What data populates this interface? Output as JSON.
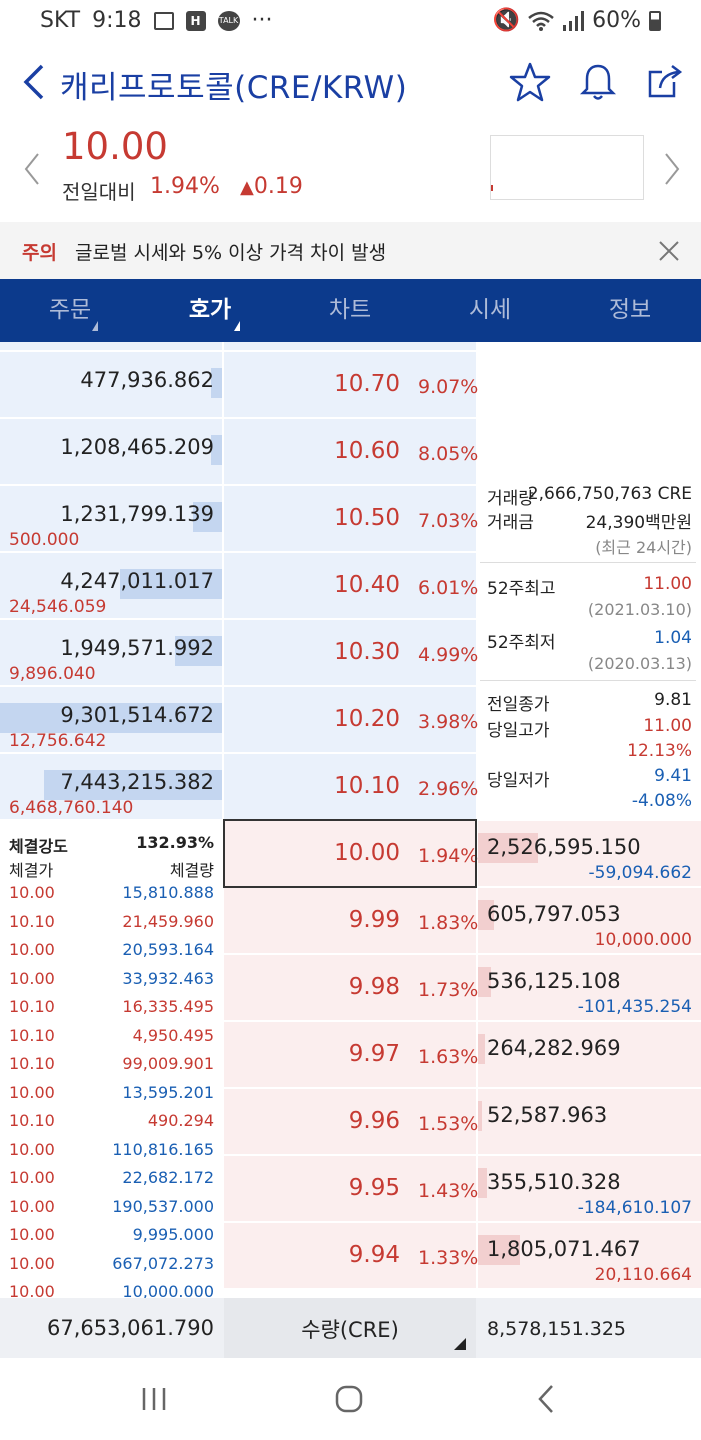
{
  "status": {
    "carrier": "SKT",
    "time": "9:18",
    "icon_h": "H",
    "icon_talk": "TALK",
    "more": "···",
    "battery": "60%"
  },
  "header": {
    "title": "캐리프로토콜(CRE/KRW)"
  },
  "price": {
    "current": "10.00",
    "compare_label": "전일대비",
    "pct": "1.94%",
    "change": "0.19"
  },
  "notice": {
    "label": "주의",
    "text": "글로벌 시세와 5% 이상 가격 차이 발생"
  },
  "tabs": [
    {
      "label": "주문"
    },
    {
      "label": "호가"
    },
    {
      "label": "차트"
    },
    {
      "label": "시세"
    },
    {
      "label": "정보"
    }
  ],
  "asks": [
    {
      "vol": "477,936.862",
      "price": "10.70",
      "pct": "9.07%",
      "sub": "",
      "fill": 0.05
    },
    {
      "vol": "1,208,465.209",
      "price": "10.60",
      "pct": "8.05%",
      "sub": "",
      "fill": 0.05
    },
    {
      "vol": "1,231,799.139",
      "price": "10.50",
      "pct": "7.03%",
      "sub": "500.000",
      "fill": 0.13
    },
    {
      "vol": "4,247,011.017",
      "price": "10.40",
      "pct": "6.01%",
      "sub": "24,546.059",
      "fill": 0.46
    },
    {
      "vol": "1,949,571.992",
      "price": "10.30",
      "pct": "4.99%",
      "sub": "9,896.040",
      "fill": 0.21
    },
    {
      "vol": "9,301,514.672",
      "price": "10.20",
      "pct": "3.98%",
      "sub": "12,756.642",
      "fill": 1.0
    },
    {
      "vol": "7,443,215.382",
      "price": "10.10",
      "pct": "2.96%",
      "sub": "6,468,760.140",
      "fill": 0.8
    }
  ],
  "bids": [
    {
      "vol": "2,526,595.150",
      "price": "10.00",
      "pct": "1.94%",
      "sub": "-59,094.662",
      "fill": 0.27
    },
    {
      "vol": "605,797.053",
      "price": "9.99",
      "pct": "1.83%",
      "sub": "10,000.000",
      "fill": 0.07
    },
    {
      "vol": "536,125.108",
      "price": "9.98",
      "pct": "1.73%",
      "sub": "-101,435.254",
      "fill": 0.06
    },
    {
      "vol": "264,282.969",
      "price": "9.97",
      "pct": "1.63%",
      "sub": "",
      "fill": 0.03
    },
    {
      "vol": "52,587.963",
      "price": "9.96",
      "pct": "1.53%",
      "sub": "",
      "fill": 0.01
    },
    {
      "vol": "355,510.328",
      "price": "9.95",
      "pct": "1.43%",
      "sub": "-184,610.107",
      "fill": 0.04
    },
    {
      "vol": "1,805,071.467",
      "price": "9.94",
      "pct": "1.33%",
      "sub": "20,110.664",
      "fill": 0.19
    }
  ],
  "info": {
    "volume_label": "거래량",
    "volume": "2,666,750,763 CRE",
    "amount_label": "거래금",
    "amount": "24,390백만원",
    "recent": "(최근 24시간)",
    "high52_label": "52주최고",
    "high52": "11.00",
    "high52_date": "(2021.03.10)",
    "low52_label": "52주최저",
    "low52": "1.04",
    "low52_date": "(2020.03.13)",
    "prev_close_label": "전일종가",
    "prev_close": "9.81",
    "day_high_label": "당일고가",
    "day_high": "11.00",
    "day_high_pct": "12.13%",
    "day_low_label": "당일저가",
    "day_low": "9.41",
    "day_low_pct": "-4.08%"
  },
  "trades": {
    "strength_label": "체결강도",
    "strength": "132.93%",
    "price_col": "체결가",
    "vol_col": "체결량",
    "rows": [
      {
        "p": "10.00",
        "v": "15,810.888",
        "c": "blue"
      },
      {
        "p": "10.10",
        "v": "21,459.960",
        "c": "red"
      },
      {
        "p": "10.00",
        "v": "20,593.164",
        "c": "blue"
      },
      {
        "p": "10.00",
        "v": "33,932.463",
        "c": "blue"
      },
      {
        "p": "10.10",
        "v": "16,335.495",
        "c": "red"
      },
      {
        "p": "10.10",
        "v": "4,950.495",
        "c": "red"
      },
      {
        "p": "10.10",
        "v": "99,009.901",
        "c": "red"
      },
      {
        "p": "10.00",
        "v": "13,595.201",
        "c": "blue"
      },
      {
        "p": "10.10",
        "v": "490.294",
        "c": "red"
      },
      {
        "p": "10.00",
        "v": "110,816.165",
        "c": "blue"
      },
      {
        "p": "10.00",
        "v": "22,682.172",
        "c": "blue"
      },
      {
        "p": "10.00",
        "v": "190,537.000",
        "c": "blue"
      },
      {
        "p": "10.00",
        "v": "9,995.000",
        "c": "blue"
      },
      {
        "p": "10.00",
        "v": "667,072.273",
        "c": "blue"
      },
      {
        "p": "10.00",
        "v": "10,000.000",
        "c": "blue"
      }
    ]
  },
  "footer": {
    "ask_total": "67,653,061.790",
    "unit_label": "수량(CRE)",
    "bid_total": "8,578,151.325"
  },
  "colors": {
    "up": "#c63a32",
    "down": "#1a5fb3",
    "brand": "#0c3a8c"
  }
}
